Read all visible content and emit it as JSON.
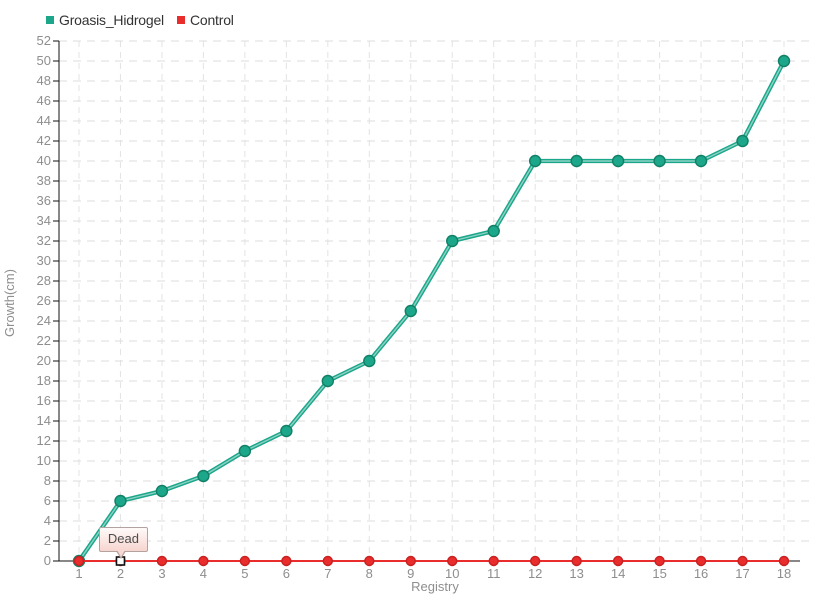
{
  "chart_data": {
    "type": "line",
    "title": "",
    "xlabel": "Registry",
    "ylabel": "Growth(cm)",
    "x": [
      1,
      2,
      3,
      4,
      5,
      6,
      7,
      8,
      9,
      10,
      11,
      12,
      13,
      14,
      15,
      16,
      17,
      18
    ],
    "ylim": [
      0,
      52
    ],
    "ytick_step": 2,
    "grid": true,
    "legend_position": "top-left",
    "series": [
      {
        "name": "Groasis_Hidrogel",
        "color": "#1CA68A",
        "marker_stroke": "#128066",
        "values": [
          0,
          6,
          7,
          8.5,
          11,
          13,
          18,
          20,
          25,
          32,
          33,
          40,
          40,
          40,
          40,
          40,
          42,
          50
        ]
      },
      {
        "name": "Control",
        "color": "#E92C2C",
        "marker_stroke": "#C62222",
        "values": [
          0,
          0,
          0,
          0,
          0,
          0,
          0,
          0,
          0,
          0,
          0,
          0,
          0,
          0,
          0,
          0,
          0,
          0
        ]
      }
    ],
    "annotation": {
      "text": "Dead",
      "series": "Control",
      "x": 2,
      "y": 0
    },
    "colors": {
      "axis": "#111111",
      "tick_label": "#8e8e8e",
      "gridline": "#dedede",
      "tooltip_border": "#b3a3a0",
      "tooltip_bg": "#f7d5cf",
      "legend_text": "#333333"
    }
  }
}
